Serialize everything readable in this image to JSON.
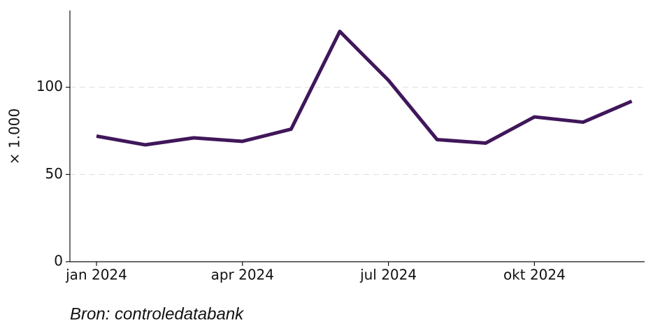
{
  "chart_data": {
    "type": "line",
    "categories": [
      "jan 2024",
      null,
      null,
      "apr 2024",
      null,
      null,
      "jul 2024",
      null,
      null,
      "okt 2024",
      null,
      null
    ],
    "series": [
      {
        "name": null,
        "color": "#40175a",
        "values": [
          72,
          67,
          71,
          69,
          76,
          132,
          104,
          70,
          68,
          83,
          80,
          92
        ]
      }
    ],
    "ylabel": "× 1.000",
    "ylim": [
      0,
      144
    ],
    "yticks": [
      0,
      50,
      100
    ],
    "grid": true,
    "source": "Bron: controledatabank"
  }
}
